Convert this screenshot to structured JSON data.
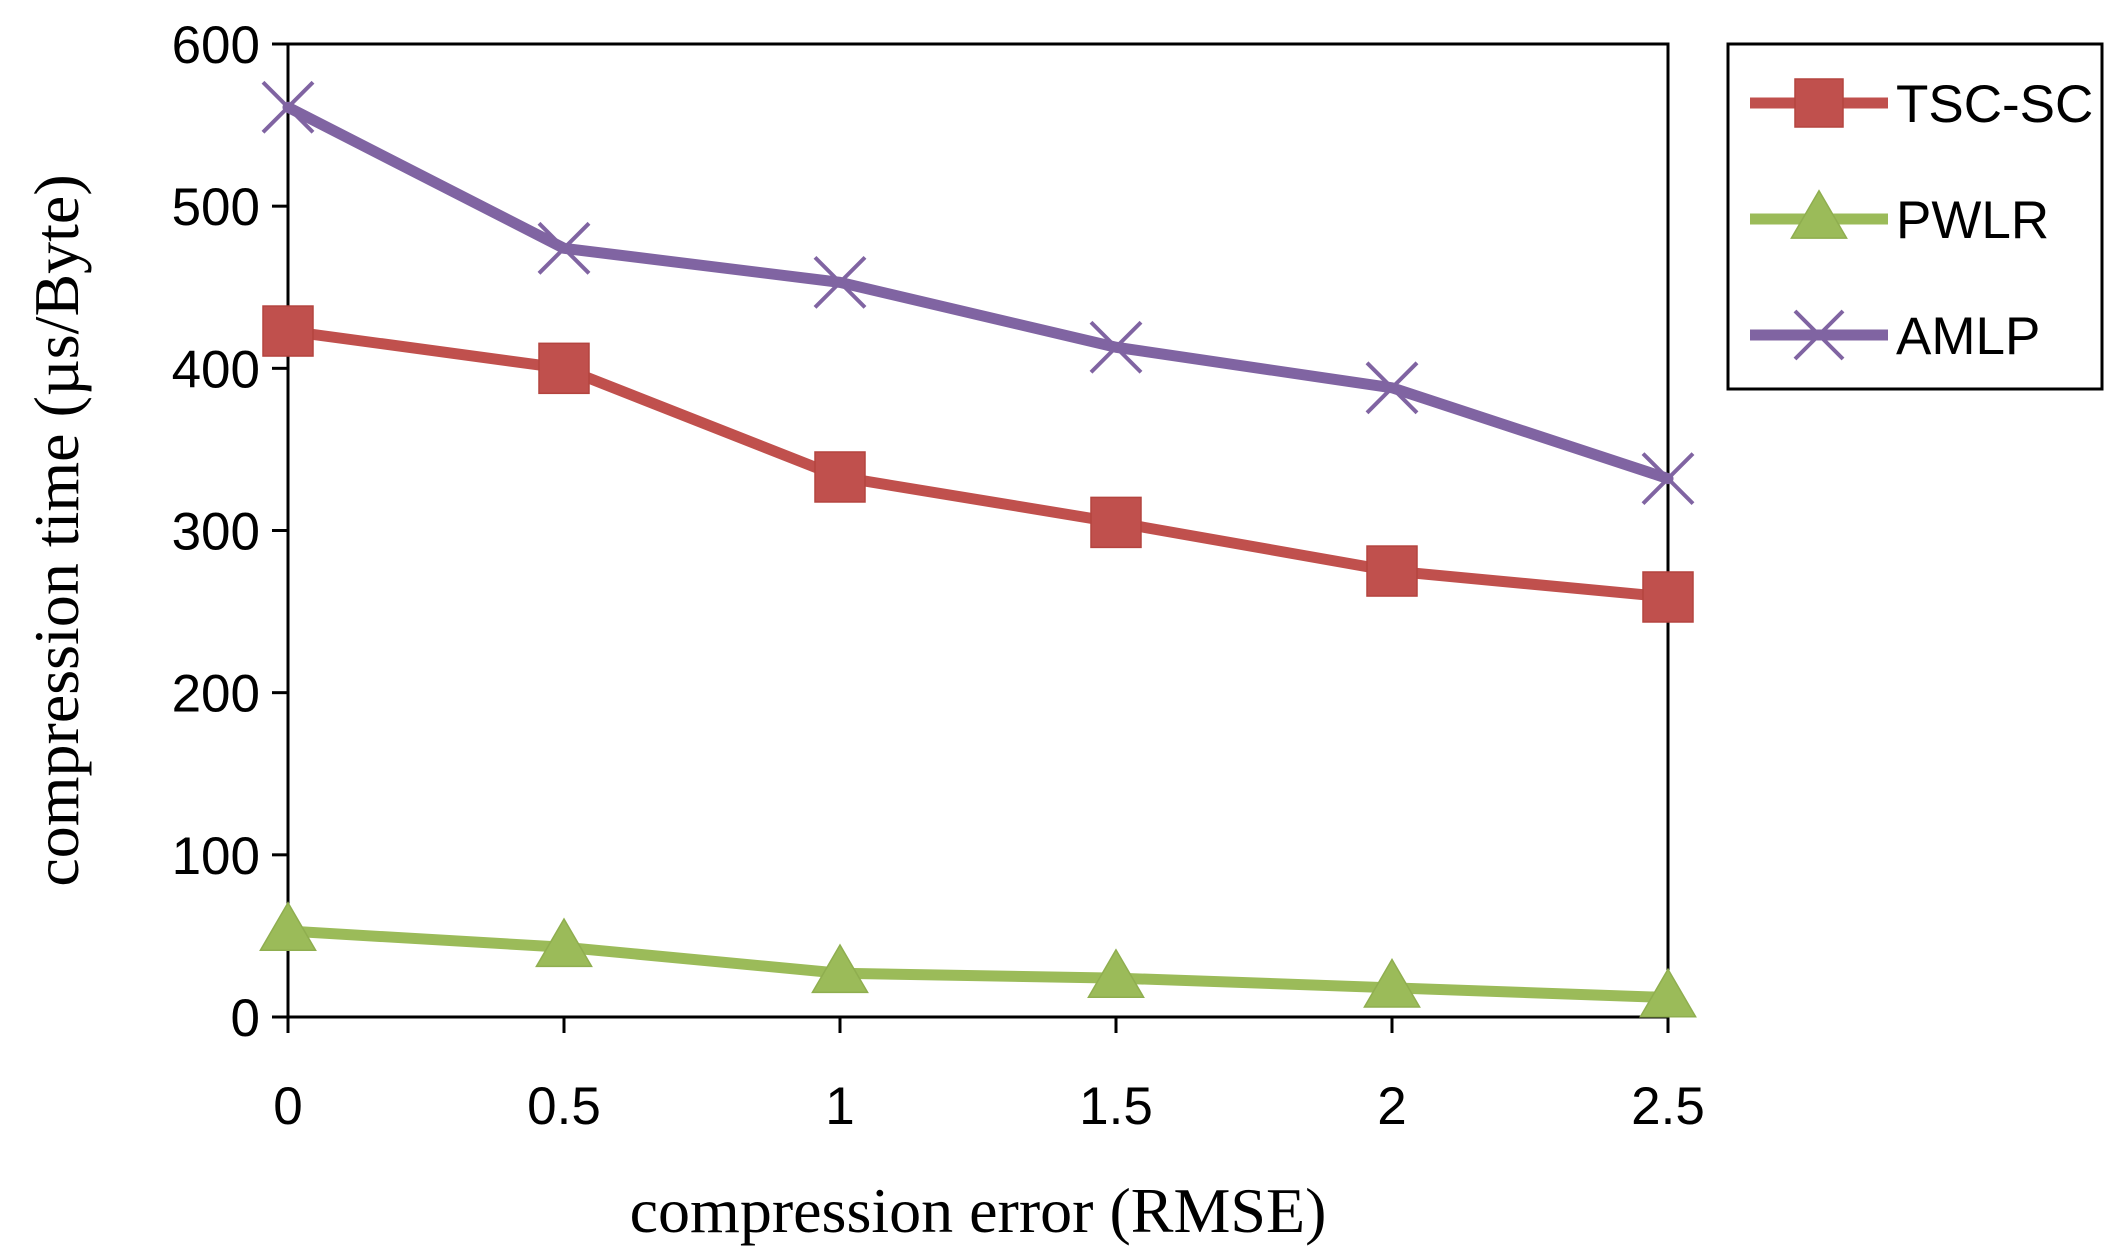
{
  "chart_data": {
    "type": "line",
    "title": "",
    "xlabel": "compression  error (RMSE)",
    "ylabel": "compression time (µs/Byte)",
    "x": [
      0,
      0.5,
      1,
      1.5,
      2,
      2.5
    ],
    "xticks": [
      "0",
      "0.5",
      "1",
      "1.5",
      "2",
      "2.5"
    ],
    "yticks": [
      "0",
      "100",
      "200",
      "300",
      "400",
      "500",
      "600"
    ],
    "xlim": [
      0,
      2.5
    ],
    "ylim": [
      0,
      600
    ],
    "grid": false,
    "legend_position": "top-right, outside plot",
    "series": [
      {
        "name": "TSC-SC",
        "values": [
          423,
          400,
          333,
          305,
          275,
          259
        ],
        "color": "#C0504D",
        "marker": "square"
      },
      {
        "name": "PWLR",
        "values": [
          53,
          43,
          27,
          24,
          18,
          12
        ],
        "color": "#9BBB59",
        "marker": "triangle"
      },
      {
        "name": "AMLP",
        "values": [
          561,
          474,
          453,
          413,
          388,
          332
        ],
        "color": "#8064A2",
        "marker": "x"
      }
    ]
  }
}
